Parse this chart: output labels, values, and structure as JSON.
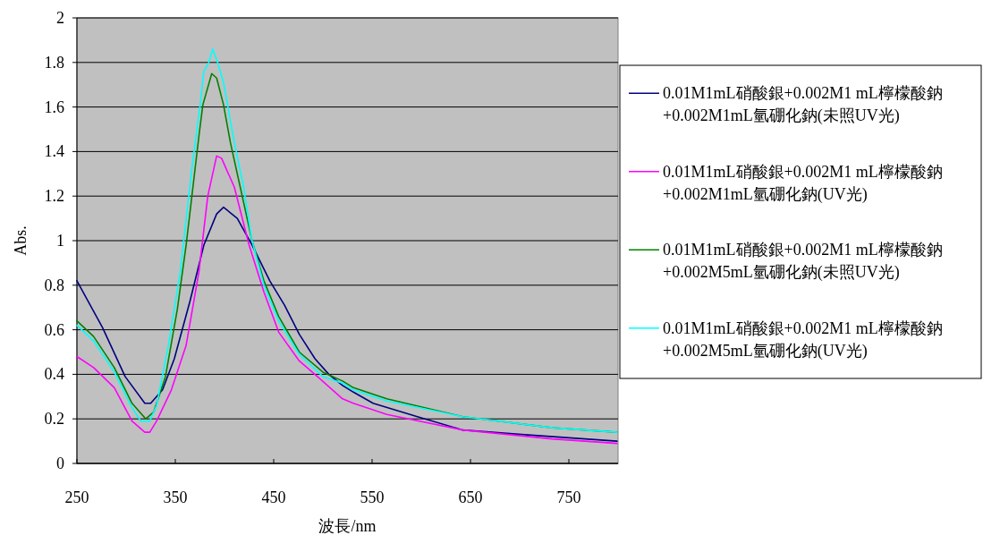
{
  "chart_data": {
    "type": "line",
    "xlabel": "波長/nm",
    "ylabel": "Abs.",
    "xlim": [
      250,
      800
    ],
    "xticks": [
      250,
      350,
      450,
      550,
      650,
      750
    ],
    "ylim": [
      0,
      2
    ],
    "yticks": [
      0,
      0.2,
      0.4,
      0.6,
      0.8,
      1,
      1.2,
      1.4,
      1.6,
      1.8,
      2
    ],
    "grid": "y",
    "legend": "right",
    "line_style": "solid",
    "marker": "none",
    "series": [
      {
        "name": "0.01M1mL硝酸銀+0.002M1 mL檸檬酸鈉+0.002M1mL氫硼化鈉(未照UV光)",
        "color": "#000080",
        "x": [
          250,
          276,
          299,
          319,
          325,
          337,
          349,
          365,
          379,
          392,
          399,
          413,
          428,
          446,
          461,
          476,
          492,
          506,
          520,
          531,
          551,
          596,
          642,
          702,
          799
        ],
        "values": [
          0.82,
          0.61,
          0.39,
          0.27,
          0.27,
          0.33,
          0.47,
          0.73,
          0.98,
          1.12,
          1.15,
          1.1,
          0.98,
          0.82,
          0.71,
          0.58,
          0.47,
          0.4,
          0.35,
          0.32,
          0.27,
          0.21,
          0.15,
          0.13,
          0.1
        ]
      },
      {
        "name": "0.01M1mL硝酸銀+0.002M1 mL檸檬酸鈉+0.002M1mL氫硼化鈉(UV光)",
        "color": "#ff00ff",
        "x": [
          250,
          267,
          288,
          306,
          319,
          324,
          331,
          346,
          361,
          374,
          383,
          392,
          397,
          410,
          425,
          440,
          455,
          476,
          497,
          520,
          531,
          565,
          642,
          733,
          799
        ],
        "values": [
          0.48,
          0.43,
          0.34,
          0.19,
          0.14,
          0.14,
          0.19,
          0.33,
          0.53,
          0.86,
          1.2,
          1.38,
          1.37,
          1.24,
          0.98,
          0.77,
          0.59,
          0.46,
          0.38,
          0.29,
          0.27,
          0.22,
          0.15,
          0.11,
          0.09
        ]
      },
      {
        "name": "0.01M1mL硝酸銀+0.002M1 mL檸檬酸鈉+0.002M5mL氫硼化鈉(未照UV光)",
        "color": "#008000",
        "x": [
          250,
          267,
          288,
          306,
          320,
          328,
          340,
          352,
          361,
          374,
          378,
          387,
          392,
          399,
          406,
          415,
          428,
          440,
          455,
          476,
          500,
          520,
          531,
          565,
          642,
          733,
          799
        ],
        "values": [
          0.64,
          0.57,
          0.43,
          0.27,
          0.2,
          0.23,
          0.39,
          0.69,
          0.98,
          1.47,
          1.61,
          1.75,
          1.73,
          1.61,
          1.44,
          1.26,
          1.0,
          0.82,
          0.66,
          0.5,
          0.41,
          0.37,
          0.34,
          0.29,
          0.21,
          0.16,
          0.14
        ]
      },
      {
        "name": "0.01M1mL硝酸銀+0.002M1 mL檸檬酸鈉+0.002M5mL氫硼化鈉(UV光)",
        "color": "#00ffff",
        "x": [
          250,
          267,
          288,
          306,
          315,
          324,
          331,
          343,
          355,
          367,
          375,
          379,
          384,
          388,
          393,
          399,
          410,
          419,
          428,
          440,
          455,
          476,
          500,
          520,
          531,
          565,
          642,
          733,
          799
        ],
        "values": [
          0.62,
          0.55,
          0.41,
          0.25,
          0.19,
          0.19,
          0.26,
          0.53,
          0.86,
          1.33,
          1.6,
          1.76,
          1.8,
          1.86,
          1.8,
          1.71,
          1.44,
          1.25,
          1.0,
          0.8,
          0.64,
          0.49,
          0.39,
          0.36,
          0.33,
          0.28,
          0.21,
          0.16,
          0.14
        ]
      }
    ]
  }
}
